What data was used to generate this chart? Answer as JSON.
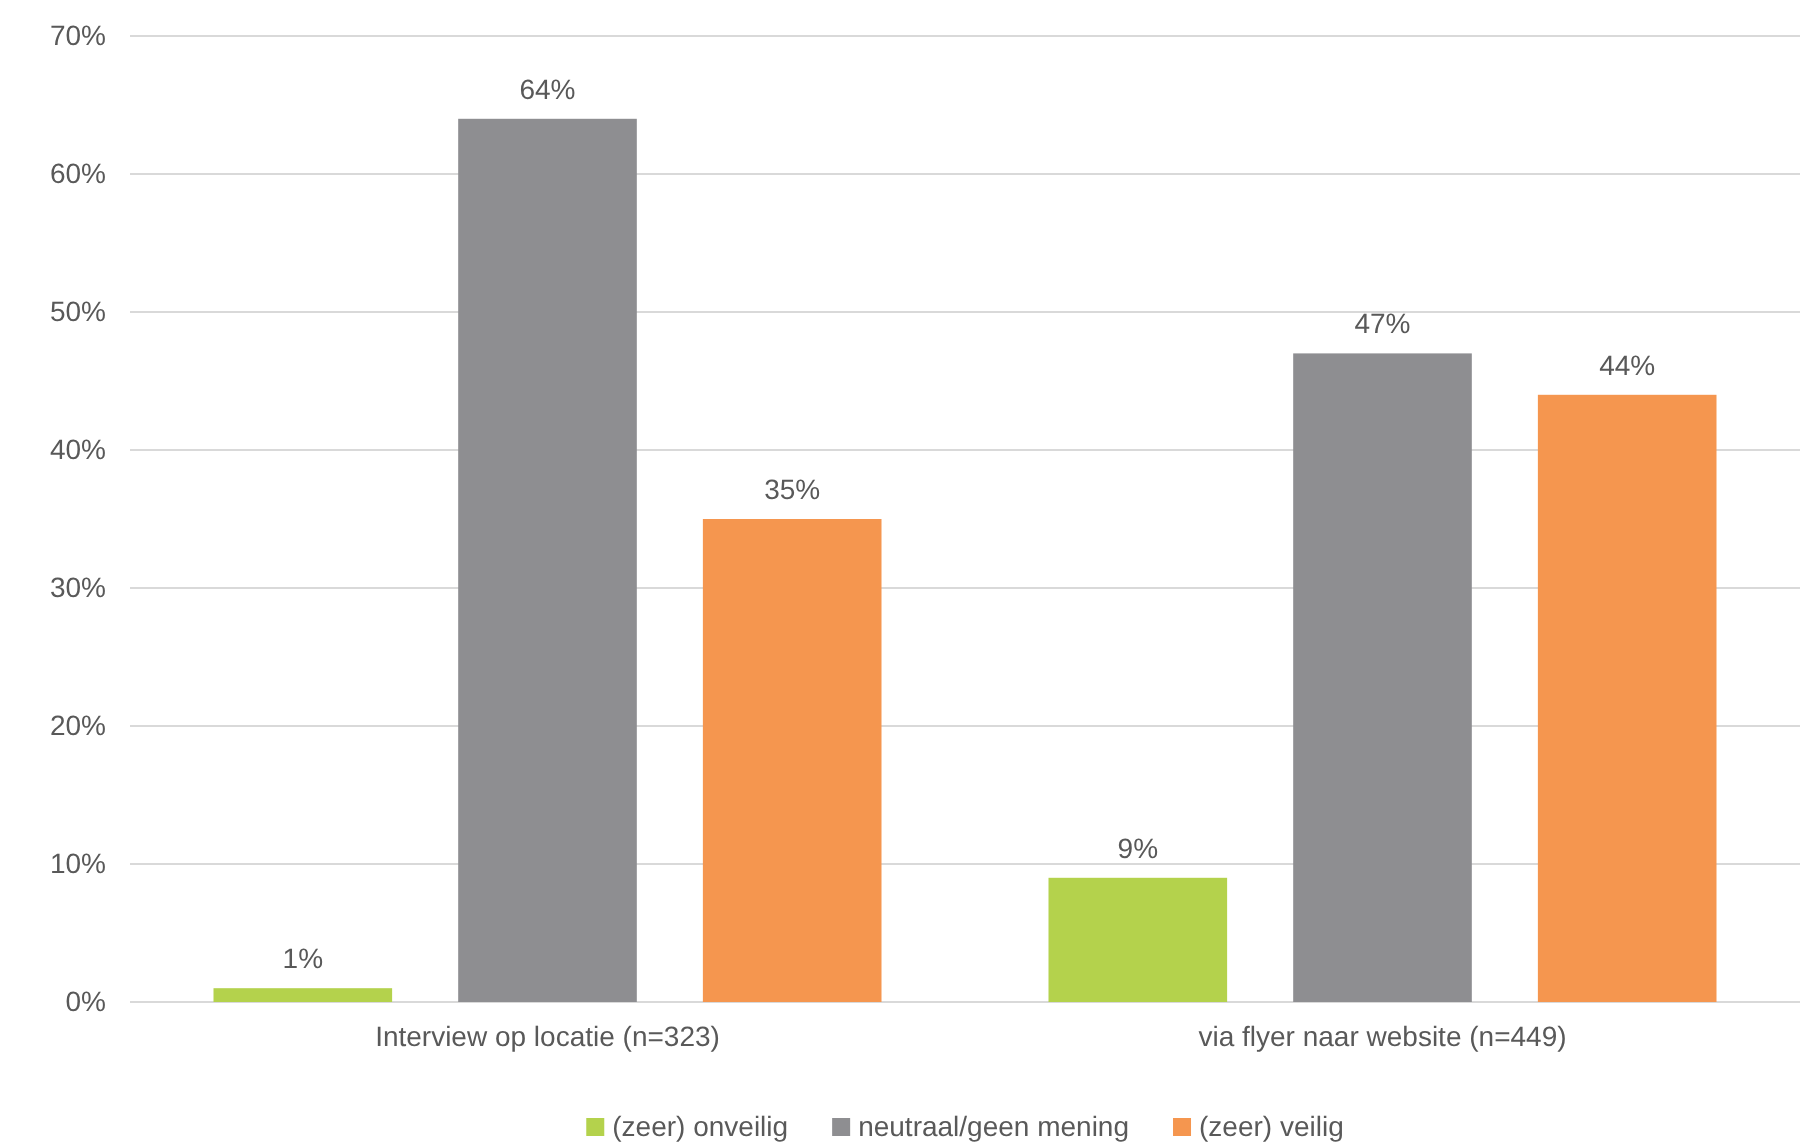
{
  "chart_data": {
    "type": "bar",
    "categories": [
      "Interview op locatie (n=323)",
      "via flyer naar website (n=449)"
    ],
    "series": [
      {
        "name": "(zeer) onveilig",
        "color": "#b4d24c",
        "values": [
          1,
          9
        ],
        "value_labels": [
          "1%",
          "9%"
        ]
      },
      {
        "name": "neutraal/geen mening",
        "color": "#8e8e91",
        "values": [
          64,
          47
        ],
        "value_labels": [
          "64%",
          "47%"
        ]
      },
      {
        "name": "(zeer) veilig",
        "color": "#f5964f",
        "values": [
          35,
          44
        ],
        "value_labels": [
          "35%",
          "44%"
        ]
      }
    ],
    "ylim": [
      0,
      70
    ],
    "yticks": [
      {
        "value": 0,
        "label": "0%"
      },
      {
        "value": 10,
        "label": "10%"
      },
      {
        "value": 20,
        "label": "20%"
      },
      {
        "value": 30,
        "label": "30%"
      },
      {
        "value": 40,
        "label": "40%"
      },
      {
        "value": 50,
        "label": "50%"
      },
      {
        "value": 60,
        "label": "60%"
      },
      {
        "value": 70,
        "label": "70%"
      }
    ],
    "grid": "y",
    "legend": "bottom"
  }
}
